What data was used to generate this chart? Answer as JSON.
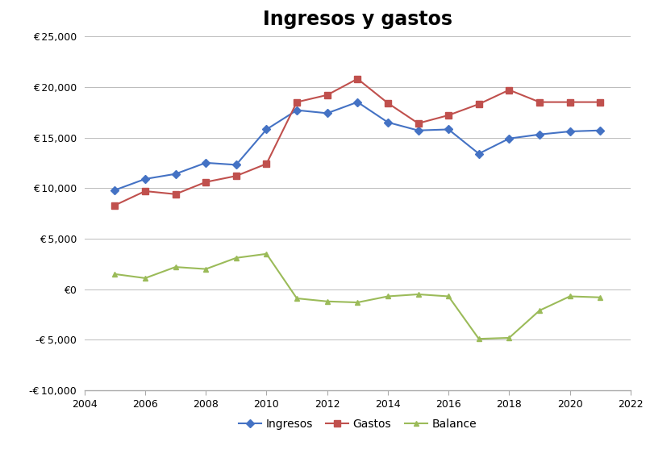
{
  "title": "Ingresos y gastos",
  "title_fontsize": 17,
  "title_fontweight": "bold",
  "years_ingresos": [
    2005,
    2006,
    2007,
    2008,
    2009,
    2010,
    2011,
    2012,
    2013,
    2014,
    2015,
    2016,
    2017,
    2018,
    2019,
    2020,
    2021
  ],
  "ingresos": [
    9800,
    10900,
    11400,
    12500,
    12300,
    15800,
    17700,
    17400,
    18500,
    16500,
    15700,
    15800,
    13400,
    14900,
    15300,
    15600,
    15700
  ],
  "years_gastos": [
    2005,
    2006,
    2007,
    2008,
    2009,
    2010,
    2011,
    2012,
    2013,
    2014,
    2015,
    2016,
    2017,
    2018,
    2019,
    2020,
    2021
  ],
  "gastos": [
    8300,
    9700,
    9400,
    10600,
    11200,
    12400,
    18500,
    19200,
    20800,
    18400,
    16400,
    17200,
    18300,
    19700,
    18500,
    18500,
    18500
  ],
  "years_balance": [
    2005,
    2006,
    2007,
    2008,
    2009,
    2010,
    2011,
    2012,
    2013,
    2014,
    2015,
    2016,
    2017,
    2018,
    2019,
    2020,
    2021
  ],
  "balance": [
    1500,
    1100,
    2200,
    2000,
    3100,
    3500,
    -900,
    -1200,
    -1300,
    -700,
    -500,
    -700,
    -4900,
    -4800,
    -2100,
    -700,
    -800
  ],
  "color_ingresos": "#4472c4",
  "color_gastos": "#c0504d",
  "color_balance": "#9bbb59",
  "xlim": [
    2004,
    2022
  ],
  "ylim": [
    -10000,
    25000
  ],
  "yticks": [
    -10000,
    -5000,
    0,
    5000,
    10000,
    15000,
    20000,
    25000
  ],
  "xticks": [
    2004,
    2006,
    2008,
    2010,
    2012,
    2014,
    2016,
    2018,
    2020,
    2022
  ],
  "legend_labels": [
    "Ingresos",
    "Gastos",
    "Balance"
  ],
  "bg_color": "#ffffff",
  "grid_color": "#bbbbbb",
  "neg_label_color": "#cc0000",
  "spine_color": "#aaaaaa",
  "tick_label_fontsize": 9,
  "legend_fontsize": 10
}
